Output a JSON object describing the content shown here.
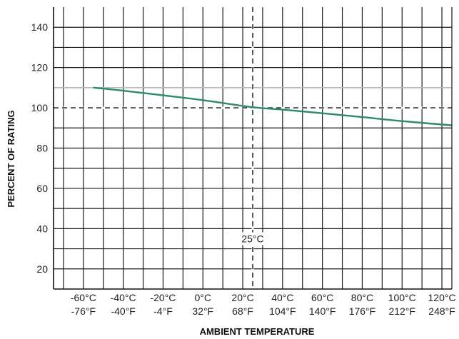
{
  "chart_data": {
    "type": "line",
    "title": "",
    "xlabel": "AMBIENT TEMPERATURE",
    "ylabel": "PERCENT OF RATING",
    "xlim": [
      -75,
      125
    ],
    "ylim": [
      10,
      150
    ],
    "grid": true,
    "x_ticks": [
      {
        "value": -60,
        "c_label": "-60°C",
        "f_label": "-76°F"
      },
      {
        "value": -40,
        "c_label": "-40°C",
        "f_label": "-40°F"
      },
      {
        "value": -20,
        "c_label": "-20°C",
        "f_label": "-4°F"
      },
      {
        "value": 0,
        "c_label": "0°C",
        "f_label": "32°F"
      },
      {
        "value": 20,
        "c_label": "20°C",
        "f_label": "68°F"
      },
      {
        "value": 40,
        "c_label": "40°C",
        "f_label": "104°F"
      },
      {
        "value": 60,
        "c_label": "60°C",
        "f_label": "140°F"
      },
      {
        "value": 80,
        "c_label": "80°C",
        "f_label": "176°F"
      },
      {
        "value": 100,
        "c_label": "100°C",
        "f_label": "212°F"
      },
      {
        "value": 120,
        "c_label": "120°C",
        "f_label": "248°F"
      }
    ],
    "y_ticks": [
      20,
      40,
      60,
      80,
      100,
      120,
      140
    ],
    "series": [
      {
        "color": "#2e8b63",
        "x": [
          -55,
          -40,
          -20,
          0,
          25,
          40,
          60,
          80,
          100,
          125
        ],
        "y": [
          110,
          108.5,
          106.2,
          103.8,
          100.3,
          99.1,
          97.3,
          95.4,
          93.4,
          91.3
        ]
      }
    ],
    "reference_lines": [
      {
        "axis": "y",
        "value": 100,
        "style": "dashed"
      },
      {
        "axis": "x",
        "value": 25,
        "style": "dashed",
        "label": "25°C",
        "label_y": 35
      }
    ],
    "highlight_gridline_y": 110
  }
}
